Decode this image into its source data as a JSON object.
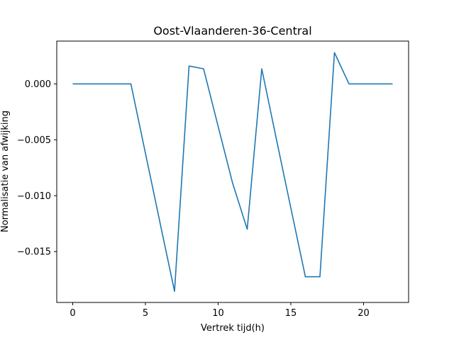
{
  "chart_data": {
    "type": "line",
    "title": "Oost-Vlaanderen-36-Central",
    "xlabel": "Vertrek tijd(h)",
    "ylabel": "Normalisatie van afwijking",
    "xlim": [
      -1.1,
      23.1
    ],
    "ylim": [
      -0.01955,
      0.00383
    ],
    "xticks": [
      0,
      5,
      10,
      15,
      20
    ],
    "yticks": [
      0.0,
      -0.005,
      -0.01,
      -0.015
    ],
    "xtick_labels": [
      "0",
      "5",
      "10",
      "15",
      "20"
    ],
    "ytick_labels": [
      "0.000",
      "−0.005",
      "−0.010",
      "−0.015"
    ],
    "grid": false,
    "series": [
      {
        "color": "#1f77b4",
        "x": [
          0,
          1,
          2,
          3,
          4,
          5,
          6,
          7,
          8,
          9,
          10,
          11,
          12,
          13,
          14,
          15,
          16,
          17,
          18,
          19,
          20,
          21,
          22
        ],
        "y": [
          0.0,
          0.0,
          0.0,
          0.0,
          0.0,
          -0.0062,
          -0.0124,
          -0.01855,
          0.0016,
          0.00135,
          -0.0038,
          -0.0089,
          -0.013,
          0.00135,
          -0.0049,
          -0.0111,
          -0.01725,
          -0.01725,
          0.0028,
          0.0,
          0.0,
          0.0,
          0.0
        ]
      }
    ]
  }
}
